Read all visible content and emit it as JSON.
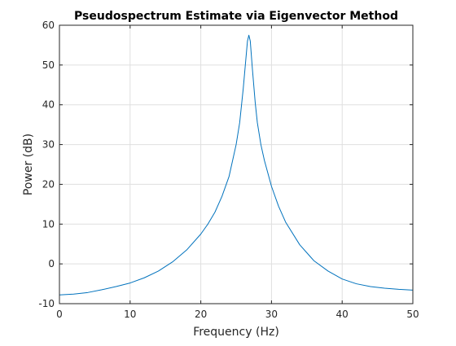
{
  "chart_data": {
    "type": "line",
    "title": "Pseudospectrum Estimate via Eigenvector Method",
    "xlabel": "Frequency (Hz)",
    "ylabel": "Power (dB)",
    "xlim": [
      0,
      50
    ],
    "ylim": [
      -10,
      60
    ],
    "xticks": [
      0,
      10,
      20,
      30,
      40,
      50
    ],
    "yticks": [
      -10,
      0,
      10,
      20,
      30,
      40,
      50,
      60
    ],
    "grid": true,
    "series": [
      {
        "color": "#0072BD",
        "x": [
          0,
          2,
          4,
          6,
          8,
          10,
          12,
          14,
          16,
          18,
          20,
          21,
          22,
          23,
          24,
          25,
          25.5,
          26,
          26.3,
          26.6,
          26.8,
          27,
          27.3,
          27.7,
          28,
          28.5,
          29,
          30,
          31,
          32,
          34,
          36,
          38,
          40,
          42,
          44,
          46,
          48,
          50
        ],
        "y": [
          -7.8,
          -7.6,
          -7.2,
          -6.5,
          -5.7,
          -4.8,
          -3.5,
          -1.8,
          0.5,
          3.5,
          7.5,
          10,
          13,
          17,
          22,
          30,
          35.5,
          44,
          50,
          56,
          57.5,
          56,
          49,
          40.5,
          35.5,
          30,
          26,
          19.5,
          14.5,
          10.5,
          4.8,
          0.8,
          -1.8,
          -3.8,
          -5,
          -5.7,
          -6.1,
          -6.4,
          -6.6
        ]
      }
    ]
  }
}
